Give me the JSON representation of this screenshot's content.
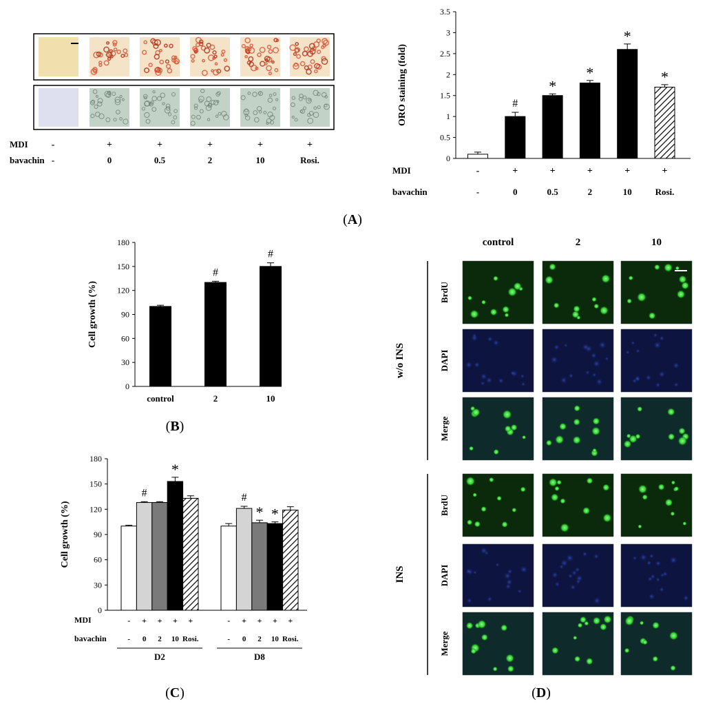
{
  "panel_labels": {
    "A": "A",
    "B": "B",
    "C": "C",
    "D": "D"
  },
  "colors": {
    "black": "#000000",
    "light_gray": "#d4d4d4",
    "dark_gray": "#7a7a7a",
    "white": "#ffffff"
  },
  "panelA_images": {
    "row_labels": {
      "mdi": "MDI",
      "bavachin": "bavachin"
    },
    "columns": [
      {
        "mdi": "-",
        "bavachin": "-"
      },
      {
        "mdi": "+",
        "bavachin": "0"
      },
      {
        "mdi": "+",
        "bavachin": "0.5"
      },
      {
        "mdi": "+",
        "bavachin": "2"
      },
      {
        "mdi": "+",
        "bavachin": "10"
      },
      {
        "mdi": "+",
        "bavachin": "Rosi."
      }
    ]
  },
  "panelD_images": {
    "column_headers": [
      "control",
      "2",
      "10"
    ],
    "groups": [
      {
        "label": "w/o INS",
        "rows": [
          "BrdU",
          "DAPI",
          "Merge"
        ]
      },
      {
        "label": "INS",
        "rows": [
          "BrdU",
          "DAPI",
          "Merge"
        ]
      }
    ]
  },
  "chart_data": [
    {
      "id": "A",
      "type": "bar",
      "ylabel": "ORO staining (fold)",
      "ylim": [
        0,
        3.5
      ],
      "yticks": [
        "0",
        "0.5",
        "1",
        "1.5",
        "2",
        "2.5",
        "3",
        "3.5"
      ],
      "row_labels": {
        "mdi": "MDI",
        "bavachin": "bavachin"
      },
      "categories": [
        {
          "mdi": "-",
          "bavachin": "-"
        },
        {
          "mdi": "+",
          "bavachin": "0"
        },
        {
          "mdi": "+",
          "bavachin": "0.5"
        },
        {
          "mdi": "+",
          "bavachin": "2"
        },
        {
          "mdi": "+",
          "bavachin": "10"
        },
        {
          "mdi": "+",
          "bavachin": "Rosi."
        }
      ],
      "values": [
        0.1,
        1.0,
        1.5,
        1.8,
        2.6,
        1.7
      ],
      "errors": [
        0.05,
        0.1,
        0.04,
        0.06,
        0.13,
        0.06
      ],
      "fills": [
        "white",
        "black",
        "black",
        "black",
        "black",
        "hatch"
      ],
      "annotations": [
        "",
        "#",
        "*",
        "*",
        "*",
        "*"
      ]
    },
    {
      "id": "B",
      "type": "bar",
      "ylabel": "Cell growth (%)",
      "ylim": [
        0,
        180
      ],
      "yticks": [
        "0",
        "30",
        "60",
        "90",
        "120",
        "150",
        "180"
      ],
      "categories": [
        "control",
        "2",
        "10"
      ],
      "values": [
        100,
        130,
        150
      ],
      "errors": [
        1.5,
        1.5,
        4.5
      ],
      "fills": [
        "black",
        "black",
        "black"
      ],
      "annotations": [
        "",
        "#",
        "#"
      ]
    },
    {
      "id": "C",
      "type": "bar",
      "ylabel": "Cell growth (%)",
      "ylim": [
        0,
        180
      ],
      "yticks": [
        "0",
        "30",
        "60",
        "90",
        "120",
        "150",
        "180"
      ],
      "row_labels": {
        "mdi": "MDI",
        "bavachin": "bavachin"
      },
      "groups": [
        {
          "name": "D2",
          "categories": [
            {
              "mdi": "-",
              "bavachin": "-"
            },
            {
              "mdi": "+",
              "bavachin": "0"
            },
            {
              "mdi": "+",
              "bavachin": "2"
            },
            {
              "mdi": "+",
              "bavachin": "10"
            },
            {
              "mdi": "+",
              "bavachin": "Rosi."
            }
          ],
          "values": [
            100,
            128,
            128,
            153,
            133
          ],
          "errors": [
            1,
            1,
            1,
            5,
            3
          ],
          "annotations": [
            "",
            "#",
            "",
            "*",
            ""
          ]
        },
        {
          "name": "D8",
          "categories": [
            {
              "mdi": "-",
              "bavachin": "-"
            },
            {
              "mdi": "+",
              "bavachin": "0"
            },
            {
              "mdi": "+",
              "bavachin": "2"
            },
            {
              "mdi": "+",
              "bavachin": "10"
            },
            {
              "mdi": "+",
              "bavachin": "Rosi."
            }
          ],
          "values": [
            100,
            121,
            104,
            103,
            119
          ],
          "errors": [
            3,
            2.5,
            3,
            2,
            4
          ],
          "annotations": [
            "",
            "#",
            "*",
            "*",
            ""
          ]
        }
      ],
      "fills": [
        "white",
        "light_gray",
        "dark_gray",
        "black",
        "hatch"
      ]
    }
  ]
}
